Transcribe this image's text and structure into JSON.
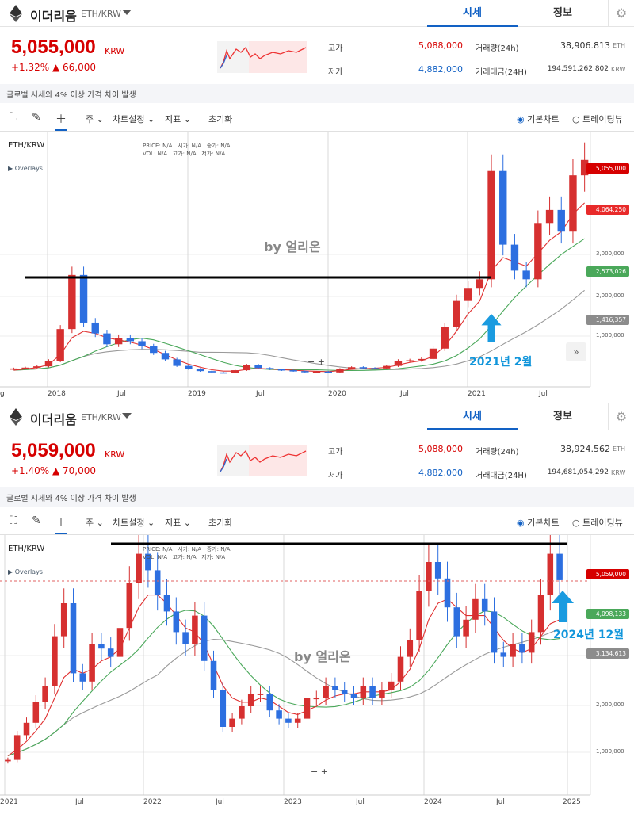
{
  "panels": [
    {
      "coin_name": "이더리움",
      "coin_pair": "ETH/KRW",
      "tab_market": "시세",
      "tab_info": "정보",
      "price": "5,055,000",
      "price_unit": "KRW",
      "change": "+1.32% ▲ 66,000",
      "high_label": "고가",
      "high_value": "5,088,000",
      "low_label": "저가",
      "low_value": "4,882,000",
      "volume_label": "거래량(24h)",
      "volume_value": "38,906.813",
      "volume_unit": "ETH",
      "amount_label": "거래대금(24H)",
      "amount_value": "194,591,262,802",
      "amount_unit": "KRW",
      "notice": "글로벌 시세와 4% 이상 가격 차이 발생",
      "toolbar": {
        "period": "주",
        "chart_settings": "차트설정",
        "indicator": "지표",
        "reset": "초기화",
        "basic_chart": "기본차트",
        "trading_view": "트레이딩뷰"
      },
      "pair_label": "ETH/KRW",
      "overlays": "▶ Overlays",
      "ohlc": {
        "price": "PRICE:",
        "vol": "VOL:",
        "open": "시가:",
        "high": "고가:",
        "close": "종가:",
        "low": "저가:",
        "na": "N/A"
      },
      "watermark": "by 얼리온",
      "annotation": "2021년 2월",
      "zoom": "−  +",
      "chart_data": {
        "type": "candlestick",
        "x_ticks": [
          "g",
          "2018",
          "Jul",
          "2019",
          "Jul",
          "2020",
          "Jul",
          "2021",
          "Jul"
        ],
        "y_ticks": [
          "3,000,000",
          "2,000,000",
          "1,000,000"
        ],
        "price_tags": [
          {
            "label": "5,055,000",
            "color": "#d60000"
          },
          {
            "label": "4,064,250",
            "color": "#e82a2a"
          },
          {
            "label": "2,573,026",
            "color": "#4aa85a"
          },
          {
            "label": "1,416,357",
            "color": "#8c8c8c"
          }
        ],
        "resistance_level": 2450000,
        "series": [
          {
            "name": "price",
            "values": [
              240000,
              260000,
              290000,
              420000,
              1150000,
              2400000,
              1300000,
              1050000,
              800000,
              950000,
              870000,
              750000,
              600000,
              450000,
              300000,
              230000,
              180000,
              150000,
              140000,
              200000,
              320000,
              250000,
              220000,
              200000,
              180000,
              160000,
              170000,
              150000,
              230000,
              270000,
              250000,
              240000,
              300000,
              420000,
              430000,
              460000,
              700000,
              1200000,
              1800000,
              2100000,
              2300000,
              4800000,
              3100000,
              2500000,
              2300000,
              3600000,
              3900000,
              3400000,
              4700000,
              5055000
            ]
          },
          {
            "name": "ma-short",
            "values": [
              200000,
              230000,
              260000,
              330000,
              560000,
              950000,
              1100000,
              1050000,
              950000,
              900000,
              850000,
              780000,
              680000,
              560000,
              440000,
              340000,
              270000,
              210000,
              180000,
              180000,
              220000,
              240000,
              230000,
              215000,
              200000,
              185000,
              175000,
              168000,
              190000,
              220000,
              235000,
              245000,
              265000,
              320000,
              380000,
              420000,
              520000,
              760000,
              1100000,
              1500000,
              1800000,
              2500000,
              2800000,
              2700000,
              2600000,
              2900000,
              3200000,
              3400000,
              3800000,
              4064250
            ]
          }
        ]
      }
    },
    {
      "coin_name": "이더리움",
      "coin_pair": "ETH/KRW",
      "tab_market": "시세",
      "tab_info": "정보",
      "price": "5,059,000",
      "price_unit": "KRW",
      "change": "+1.40% ▲ 70,000",
      "high_label": "고가",
      "high_value": "5,088,000",
      "low_label": "저가",
      "low_value": "4,882,000",
      "volume_label": "거래량(24h)",
      "volume_value": "38,924.562",
      "volume_unit": "ETH",
      "amount_label": "거래대금(24H)",
      "amount_value": "194,681,054,292",
      "amount_unit": "KRW",
      "notice": "글로벌 시세와 4% 이상 가격 차이 발생",
      "toolbar": {
        "period": "주",
        "chart_settings": "차트설정",
        "indicator": "지표",
        "reset": "초기화",
        "basic_chart": "기본차트",
        "trading_view": "트레이딩뷰"
      },
      "pair_label": "ETH/KRW",
      "overlays": "▶ Overlays",
      "ohlc": {
        "price": "PRICE:",
        "vol": "VOL:",
        "open": "시가:",
        "high": "고가:",
        "close": "종가:",
        "low": "저가:",
        "na": "N/A"
      },
      "watermark": "by 얼리온",
      "annotation": "2024년 12월",
      "zoom": "−  +",
      "chart_data": {
        "type": "candlestick",
        "x_ticks": [
          "2021",
          "Jul",
          "2022",
          "Jul",
          "2023",
          "Jul",
          "2024",
          "Jul",
          "2025"
        ],
        "y_ticks": [
          "3,000,000",
          "2,000,000",
          "1,000,000"
        ],
        "price_tags": [
          {
            "label": "5,059,000",
            "color": "#d60000"
          },
          {
            "label": "4,098,133",
            "color": "#4aa85a"
          },
          {
            "label": "3,134,613",
            "color": "#8c8c8c"
          }
        ],
        "resistance_level": 5900000,
        "series": [
          {
            "name": "price",
            "values": [
              700000,
              1300000,
              1600000,
              2100000,
              2500000,
              3700000,
              4500000,
              2800000,
              2600000,
              3500000,
              3400000,
              3200000,
              3900000,
              5000000,
              5700000,
              5300000,
              4700000,
              4300000,
              3800000,
              3500000,
              4200000,
              3100000,
              2400000,
              1500000,
              1700000,
              2000000,
              2300000,
              2300000,
              1900000,
              1700000,
              1600000,
              1700000,
              2200000,
              2200000,
              2500000,
              2400000,
              2300000,
              2200000,
              2500000,
              2200000,
              2400000,
              2600000,
              3200000,
              3600000,
              4800000,
              5500000,
              5100000,
              4400000,
              3700000,
              4100000,
              4600000,
              4300000,
              3300000,
              3200000,
              3500000,
              3300000,
              3800000,
              4700000,
              5700000,
              5059000
            ]
          },
          {
            "name": "ma-short",
            "values": [
              800000,
              950000,
              1150000,
              1400000,
              1700000,
              2200000,
              2700000,
              2900000,
              2800000,
              2900000,
              3100000,
              3200000,
              3400000,
              3900000,
              4400000,
              4700000,
              4700000,
              4500000,
              4200000,
              3900000,
              3800000,
              3500000,
              3000000,
              2500000,
              2200000,
              2100000,
              2100000,
              2200000,
              2150000,
              2000000,
              1850000,
              1800000,
              1900000,
              2000000,
              2150000,
              2250000,
              2300000,
              2300000,
              2350000,
              2350000,
              2350000,
              2400000,
              2600000,
              2900000,
              3400000,
              4100000,
              4500000,
              4600000,
              4400000,
              4200000,
              4200000,
              4200000,
              3900000,
              3600000,
              3400000,
              3300000,
              3400000,
              3700000,
              4000000,
              4098133
            ]
          }
        ]
      }
    }
  ]
}
